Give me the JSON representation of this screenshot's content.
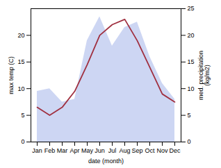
{
  "chart_data": {
    "type": "line",
    "categories": [
      "Jan",
      "Feb",
      "Mar",
      "Apr",
      "May",
      "Jun",
      "Jul",
      "Aug",
      "Sep",
      "Oct",
      "Nov",
      "Dec"
    ],
    "xlabel": "date (month)",
    "ylabel": "max temp (C)",
    "y2label": "med. precipitation\n(kg/m2)",
    "ylim": [
      0,
      25
    ],
    "yticks": [
      0,
      5,
      10,
      15,
      20
    ],
    "y2lim": [
      0,
      25
    ],
    "y2ticks": [
      0,
      5,
      10,
      15,
      20,
      25
    ],
    "grid": false,
    "series": [
      {
        "type": "area",
        "axis": "y2",
        "color": "#b8c4ee",
        "values": [
          9.5,
          10.0,
          7.5,
          8.0,
          19.0,
          23.5,
          18.0,
          21.5,
          22.5,
          16.0,
          11.0,
          8.0
        ]
      },
      {
        "type": "line",
        "color": "#a03040",
        "values": [
          6.5,
          5.0,
          6.5,
          9.5,
          14.5,
          20.0,
          22.0,
          23.0,
          19.0,
          14.0,
          9.0,
          7.5
        ]
      }
    ]
  }
}
